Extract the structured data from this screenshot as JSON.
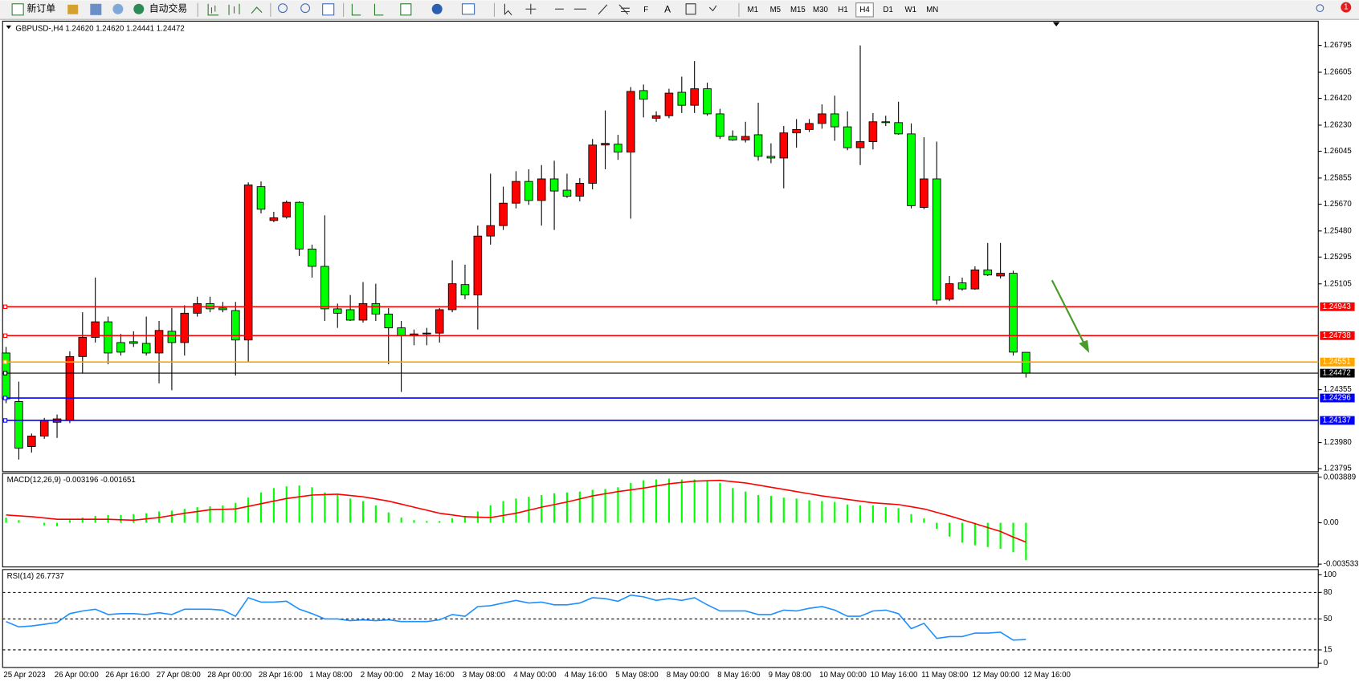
{
  "toolbar": {
    "buttons": [
      "新订单",
      "自动交易"
    ],
    "timeframes": [
      "M1",
      "M5",
      "M15",
      "M30",
      "H1",
      "H4",
      "D1",
      "W1",
      "MN"
    ],
    "notification": "1"
  },
  "chart_data": [
    {
      "type": "candlestick",
      "title": "GBPUSD-,H4  1.24620 1.24620 1.24441 1.24472",
      "categories": [
        "25 Apr 2023",
        null,
        null,
        null,
        "26 Apr 00:00",
        null,
        null,
        null,
        "26 Apr 16:00",
        null,
        null,
        null,
        "27 Apr 08:00",
        null,
        null,
        null,
        "28 Apr 00:00",
        null,
        null,
        null,
        "28 Apr 16:00",
        null,
        null,
        null,
        "1 May 08:00",
        null,
        null,
        null,
        "2 May 00:00",
        null,
        null,
        null,
        "2 May 16:00",
        null,
        null,
        null,
        "3 May 08:00",
        null,
        null,
        null,
        "4 May 00:00",
        null,
        null,
        null,
        "4 May 16:00",
        null,
        null,
        null,
        "5 May 08:00",
        null,
        null,
        null,
        "8 May 00:00",
        null,
        null,
        null,
        "8 May 16:00",
        null,
        null,
        null,
        "9 May 08:00",
        null,
        null,
        null,
        "10 May 00:00",
        null,
        null,
        null,
        "10 May 16:00",
        null,
        null,
        null,
        "11 May 08:00",
        null,
        null,
        null,
        "12 May 00:00",
        null,
        null,
        null,
        "12 May 16:00"
      ],
      "open": [
        1.24615,
        1.24271,
        1.23952,
        1.24026,
        1.24124,
        1.24136,
        1.2459,
        1.24726,
        1.24836,
        1.24689,
        1.24695,
        1.24683,
        1.24615,
        1.24769,
        1.24689,
        1.24897,
        1.24965,
        1.24934,
        1.24916,
        1.24707,
        1.25794,
        1.25554,
        1.25579,
        1.25683,
        1.25352,
        1.25229,
        1.24928,
        1.24922,
        1.24848,
        1.24965,
        1.24891,
        1.24793,
        1.24738,
        1.2475,
        1.24756,
        1.24922,
        1.251,
        1.25026,
        1.25444,
        1.25518,
        1.25677,
        1.25831,
        1.25696,
        1.25849,
        1.25769,
        1.25726,
        1.25818,
        1.26089,
        1.26095,
        1.26039,
        1.26475,
        1.26279,
        1.26297,
        1.26463,
        1.26371,
        1.26488,
        1.2631,
        1.2615,
        1.26125,
        1.26162,
        1.26009,
        1.25997,
        1.26175,
        1.26199,
        1.26242,
        1.2631,
        1.26218,
        1.2607,
        1.26113,
        1.26254,
        1.26248,
        1.26168,
        1.25647,
        1.25849,
        1.24996,
        1.25112,
        1.25069,
        1.25204,
        1.25161,
        1.2518,
        1.2462
      ],
      "high": [
        1.24658,
        1.24412,
        1.24044,
        1.24155,
        1.24179,
        1.24627,
        1.24904,
        1.25149,
        1.24873,
        1.2475,
        1.24769,
        1.24873,
        1.24842,
        1.24934,
        1.24953,
        1.25014,
        1.25014,
        1.24977,
        1.24977,
        1.25825,
        1.25831,
        1.25616,
        1.25696,
        1.2569,
        1.25383,
        1.25591,
        1.24965,
        1.25026,
        1.25118,
        1.25106,
        1.24934,
        1.24842,
        1.24781,
        1.24793,
        1.24934,
        1.25272,
        1.25241,
        1.25518,
        1.25886,
        1.25794,
        1.25904,
        1.25917,
        1.25947,
        1.25978,
        1.25886,
        1.25855,
        1.26132,
        1.26334,
        1.26162,
        1.265,
        1.26518,
        1.26328,
        1.26488,
        1.26574,
        1.26684,
        1.26531,
        1.26346,
        1.26193,
        1.26254,
        1.26389,
        1.26101,
        1.26224,
        1.26273,
        1.26273,
        1.26377,
        1.26439,
        1.26328,
        1.26795,
        1.26316,
        1.26297,
        1.26396,
        1.26242,
        1.26144,
        1.26113,
        1.25161,
        1.25149,
        1.25229,
        1.25395,
        1.25395,
        1.25198,
        1.2462
      ],
      "low": [
        1.24259,
        1.2386,
        1.23909,
        1.24007,
        1.24013,
        1.24118,
        1.24474,
        1.24689,
        1.24535,
        1.24597,
        1.24658,
        1.24597,
        1.244,
        1.24351,
        1.24597,
        1.24873,
        1.24904,
        1.24904,
        1.24455,
        1.24547,
        1.25604,
        1.25542,
        1.25567,
        1.25303,
        1.25149,
        1.24842,
        1.24793,
        1.24842,
        1.2483,
        1.24842,
        1.24535,
        1.24339,
        1.2467,
        1.2467,
        1.24689,
        1.24904,
        1.24996,
        1.24781,
        1.25383,
        1.25487,
        1.2564,
        1.25665,
        1.25518,
        1.25487,
        1.25714,
        1.2569,
        1.25775,
        1.25917,
        1.25984,
        1.25567,
        1.26285,
        1.26254,
        1.26279,
        1.26316,
        1.26316,
        1.26297,
        1.26132,
        1.26119,
        1.26107,
        1.25978,
        1.2596,
        1.25782,
        1.2607,
        1.26181,
        1.26205,
        1.26119,
        1.26052,
        1.25947,
        1.26058,
        1.26224,
        1.26162,
        1.2564,
        1.25634,
        1.24959,
        1.24983,
        1.25057,
        1.25063,
        1.25161,
        1.25143,
        1.24597,
        1.24441
      ],
      "close": [
        1.2429,
        1.2394,
        1.24026,
        1.24136,
        1.24148,
        1.2459,
        1.24726,
        1.24836,
        1.24615,
        1.24621,
        1.24683,
        1.24615,
        1.24775,
        1.24689,
        1.24897,
        1.24965,
        1.24928,
        1.24922,
        1.24707,
        1.25806,
        1.25634,
        1.25573,
        1.25683,
        1.25352,
        1.25229,
        1.24928,
        1.24897,
        1.24848,
        1.24965,
        1.24891,
        1.24793,
        1.24738,
        1.2475,
        1.24756,
        1.24922,
        1.25106,
        1.25026,
        1.25444,
        1.25518,
        1.25677,
        1.25831,
        1.25696,
        1.25849,
        1.25763,
        1.25726,
        1.25818,
        1.26089,
        1.26101,
        1.26039,
        1.26469,
        1.26414,
        1.26297,
        1.26457,
        1.26371,
        1.26488,
        1.2631,
        1.2615,
        1.26125,
        1.2615,
        1.26009,
        1.25997,
        1.26175,
        1.26199,
        1.26242,
        1.2631,
        1.26218,
        1.2607,
        1.26113,
        1.26254,
        1.26248,
        1.26168,
        1.25659,
        1.25849,
        1.2499,
        1.25106,
        1.25069,
        1.25204,
        1.25168,
        1.2518,
        1.24621,
        1.24472
      ],
      "up_color": "#ff0000",
      "down_color": "#00ff00",
      "ylim": [
        1.2378,
        1.26961
      ],
      "yticks": [
        1.26795,
        1.26605,
        {
          "value": 1.2642,
          "label": "1.26420"
        },
        {
          "value": 1.2623,
          "label": "1.26230"
        },
        1.26045,
        1.25855,
        {
          "value": 1.2567,
          "label": "1.25670"
        },
        {
          "value": 1.2548,
          "label": "1.25480"
        },
        1.25295,
        1.25105,
        1.24355,
        {
          "value": 1.2398,
          "label": "1.23980"
        },
        1.23795
      ],
      "levels": [
        {
          "value": 1.24943,
          "color": "#ff0000"
        },
        {
          "value": 1.24738,
          "color": "#ff0000"
        },
        {
          "value": 1.24551,
          "color": "#ffa500"
        },
        {
          "value": 1.24472,
          "color": "#000000"
        },
        {
          "value": 1.24296,
          "color": "#0000ff"
        },
        {
          "value": 1.24137,
          "color": "#0000ff"
        }
      ]
    },
    {
      "type": "macd",
      "title": "MACD(12,26,9) -0.003196 -0.001651",
      "histogram": {
        "color": "#00ff00",
        "values": [
          0.000444,
          0.000222,
          0,
          -0.000222,
          -0.000296,
          0.000222,
          0.000444,
          0.000592,
          0.000666,
          0.000666,
          0.00074,
          0.000814,
          0.000962,
          0.001036,
          0.001184,
          0.001332,
          0.001406,
          0.00148,
          0.001702,
          0.002146,
          0.00259,
          0.00296,
          0.003108,
          0.003182,
          0.003034,
          0.00259,
          0.002368,
          0.002072,
          0.00185,
          0.00148,
          0.000888,
          0.000444,
          0.000222,
          0.000148,
          0.000148,
          0.00037,
          0.000592,
          0.000962,
          0.00148,
          0.00185,
          0.002072,
          0.00222,
          0.002368,
          0.002516,
          0.00259,
          0.002664,
          0.002812,
          0.002886,
          0.003034,
          0.003404,
          0.003626,
          0.0037,
          0.003774,
          0.0037,
          0.0037,
          0.003552,
          0.003404,
          0.00296,
          0.002664,
          0.002368,
          0.002294,
          0.002146,
          0.002072,
          0.001924,
          0.00185,
          0.001776,
          0.001554,
          0.00148,
          0.00148,
          0.001332,
          0.001258,
          0.00074,
          0.00037,
          -0.000518,
          -0.001184,
          -0.001702,
          -0.001924,
          -0.002072,
          -0.00222,
          -0.002516,
          -0.003196
        ]
      },
      "signal": {
        "color": "#ff0000",
        "values": [
          0.000666,
          0.000592,
          0.000518,
          0.000407,
          0.000296,
          0.000296,
          0.000296,
          0.000296,
          0.000296,
          0.000259,
          0.000222,
          0.000333,
          0.000444,
          0.000629,
          0.000814,
          0.000962,
          0.00111,
          0.001147,
          0.001184,
          0.001406,
          0.001628,
          0.00185,
          0.002072,
          0.00222,
          0.002368,
          0.002405,
          0.002442,
          0.002331,
          0.00222,
          0.002035,
          0.00185,
          0.001591,
          0.001332,
          0.001073,
          0.000814,
          0.000666,
          0.000518,
          0.000481,
          0.000444,
          0.000629,
          0.000814,
          0.001073,
          0.001332,
          0.001554,
          0.001776,
          0.002035,
          0.002294,
          0.002479,
          0.002664,
          0.002812,
          0.00296,
          0.003145,
          0.00333,
          0.003441,
          0.003552,
          0.003589,
          0.003626,
          0.003515,
          0.003404,
          0.003219,
          0.003034,
          0.002849,
          0.002664,
          0.002479,
          0.002294,
          0.002146,
          0.001998,
          0.00185,
          0.001702,
          0.001628,
          0.001554,
          0.001369,
          0.001184,
          0.000888,
          0.000592,
          0.000259,
          -7.4e-05,
          -0.000407,
          -0.00074,
          -0.001221,
          -0.001651
        ]
      },
      "ylim": [
        -0.0037,
        0.004144
      ],
      "yticks": [
        0.003889,
        {
          "value": 0,
          "label": "0.00"
        },
        -0.003533
      ]
    },
    {
      "type": "line",
      "title": "RSI(14) 26.7737",
      "color": "#1e90ff",
      "values": [
        47,
        41,
        42,
        44,
        46,
        56,
        59,
        61,
        55,
        56,
        56,
        55,
        57,
        55,
        61,
        61,
        61,
        60,
        53,
        74,
        69,
        69,
        70,
        61,
        56,
        50,
        50,
        48,
        49,
        48,
        49,
        47,
        47,
        47,
        49,
        55,
        53,
        64,
        65,
        68,
        71,
        68,
        69,
        66,
        66,
        68,
        74,
        73,
        70,
        77,
        75,
        71,
        73,
        71,
        74,
        66,
        59,
        59,
        59,
        55,
        55,
        60,
        59,
        62,
        64,
        60,
        53,
        53,
        59,
        60,
        56,
        39,
        45,
        28,
        30,
        30,
        34,
        34,
        35,
        26,
        26.7737
      ],
      "ylim": [
        0,
        100
      ],
      "yticks": [
        100,
        80,
        50,
        15,
        0
      ],
      "levels": [
        80,
        50,
        15
      ]
    }
  ]
}
